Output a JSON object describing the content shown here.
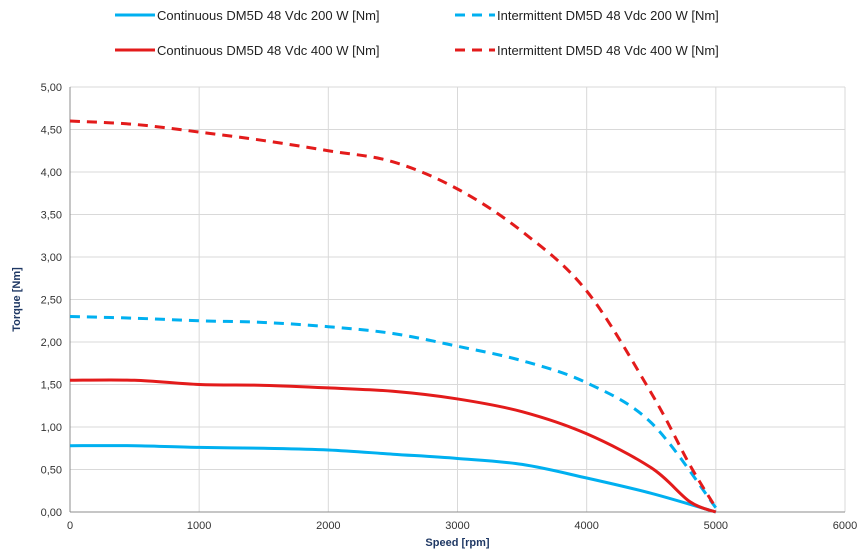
{
  "chart_data": {
    "type": "line",
    "xlabel": "Speed [rpm]",
    "ylabel": "Torque [Nm]",
    "xlim": [
      0,
      6000
    ],
    "ylim": [
      0,
      5
    ],
    "x_ticks": [
      0,
      1000,
      2000,
      3000,
      4000,
      5000,
      6000
    ],
    "y_ticks": [
      0,
      0.5,
      1.0,
      1.5,
      2.0,
      2.5,
      3.0,
      3.5,
      4.0,
      4.5,
      5.0
    ],
    "x_tick_labels": [
      "0",
      "1000",
      "2000",
      "3000",
      "4000",
      "5000",
      "6000"
    ],
    "y_tick_labels": [
      "0,00",
      "0,50",
      "1,00",
      "1,50",
      "2,00",
      "2,50",
      "3,00",
      "3,50",
      "4,00",
      "4,50",
      "5,00"
    ],
    "grid": true,
    "legend_position": "top",
    "series": [
      {
        "name": "Continuous DM5D 48 Vdc 200 W [Nm]",
        "color": "#00b0f0",
        "style": "solid",
        "x": [
          0,
          500,
          1000,
          1500,
          2000,
          2500,
          3000,
          3500,
          4000,
          4500,
          5000
        ],
        "y": [
          0.78,
          0.78,
          0.76,
          0.75,
          0.73,
          0.68,
          0.63,
          0.56,
          0.4,
          0.22,
          0.0
        ]
      },
      {
        "name": "Intermittent DM5D 48 Vdc 200 W [Nm]",
        "color": "#00b0f0",
        "style": "dashed",
        "x": [
          0,
          500,
          1000,
          1500,
          2000,
          2500,
          3000,
          3500,
          4000,
          4500,
          5000
        ],
        "y": [
          2.3,
          2.28,
          2.25,
          2.23,
          2.18,
          2.1,
          1.95,
          1.78,
          1.52,
          1.05,
          0.05
        ]
      },
      {
        "name": "Continuous DM5D 48 Vdc 400 W [Nm]",
        "color": "#e31b1b",
        "style": "solid",
        "x": [
          0,
          500,
          1000,
          1500,
          2000,
          2500,
          3000,
          3500,
          4000,
          4500,
          4800,
          5000
        ],
        "y": [
          1.55,
          1.55,
          1.5,
          1.49,
          1.46,
          1.42,
          1.33,
          1.18,
          0.92,
          0.52,
          0.12,
          0.0
        ]
      },
      {
        "name": "Intermittent DM5D 48 Vdc 400 W [Nm]",
        "color": "#e31b1b",
        "style": "dashed",
        "x": [
          0,
          500,
          1000,
          1500,
          2000,
          2500,
          3000,
          3500,
          4000,
          4500,
          4800,
          5000
        ],
        "y": [
          4.6,
          4.56,
          4.47,
          4.37,
          4.25,
          4.12,
          3.8,
          3.3,
          2.6,
          1.4,
          0.55,
          0.05
        ]
      }
    ]
  }
}
